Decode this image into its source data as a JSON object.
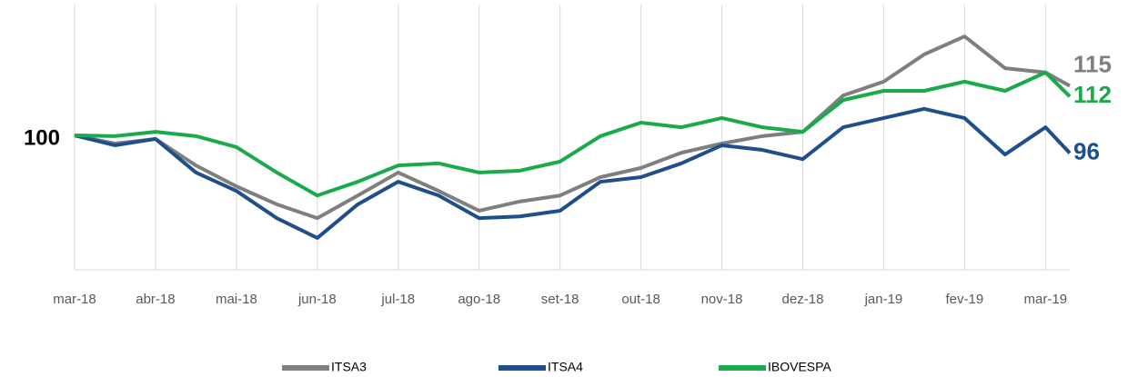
{
  "chart_data": {
    "type": "line",
    "x": [
      0,
      0.5,
      1,
      1.5,
      2,
      2.5,
      3,
      3.5,
      4,
      4.5,
      5,
      5.5,
      6,
      6.5,
      7,
      7.5,
      8,
      8.5,
      9,
      9.5,
      10,
      10.5,
      11,
      11.5,
      12,
      12.3
    ],
    "xlim": [
      0,
      12.3
    ],
    "xticks": [
      {
        "value": 0,
        "label": "mar-18"
      },
      {
        "value": 1,
        "label": "abr-18"
      },
      {
        "value": 2,
        "label": "mai-18"
      },
      {
        "value": 3,
        "label": "jun-18"
      },
      {
        "value": 4,
        "label": "jul-18"
      },
      {
        "value": 5,
        "label": "ago-18"
      },
      {
        "value": 6,
        "label": "set-18"
      },
      {
        "value": 7,
        "label": "out-18"
      },
      {
        "value": 8,
        "label": "nov-18"
      },
      {
        "value": 9,
        "label": "dez-18"
      },
      {
        "value": 10,
        "label": "jan-19"
      },
      {
        "value": 11,
        "label": "fev-19"
      },
      {
        "value": 12,
        "label": "mar-19"
      }
    ],
    "ylim": [
      63,
      138
    ],
    "yticks": [
      100
    ],
    "grid": true,
    "legend": "bottom",
    "series": [
      {
        "name": "ITSA3",
        "color": "#7f7f7f",
        "end_label": "115",
        "values": [
          101,
          98.7,
          100,
          92.5,
          86.6,
          81.5,
          77.6,
          84,
          90.5,
          85.3,
          79.7,
          82.3,
          84,
          89.2,
          91.8,
          96.1,
          98.7,
          100.8,
          102,
          112.3,
          116.2,
          123.9,
          129,
          120,
          118.8,
          115
        ]
      },
      {
        "name": "ITSA4",
        "color": "#1f4e8c",
        "end_label": "96",
        "values": [
          101,
          98.2,
          100,
          90.5,
          85.3,
          77.6,
          72,
          81.5,
          87.9,
          84,
          77.6,
          78.1,
          79.7,
          87.9,
          89.2,
          93.1,
          98.2,
          96.9,
          94.3,
          103.3,
          105.9,
          108.5,
          105.9,
          95.6,
          103.3,
          96
        ]
      },
      {
        "name": "IBOVESPA",
        "color": "#1aaa4b",
        "end_label": "112",
        "values": [
          101,
          100.8,
          102,
          100.8,
          97.7,
          90.5,
          84,
          87.9,
          92.5,
          93.1,
          90.5,
          91,
          93.6,
          100.8,
          104.6,
          103.3,
          105.9,
          103.3,
          102,
          111,
          113.6,
          113.6,
          116.2,
          113.6,
          118.8,
          112
        ]
      }
    ]
  }
}
